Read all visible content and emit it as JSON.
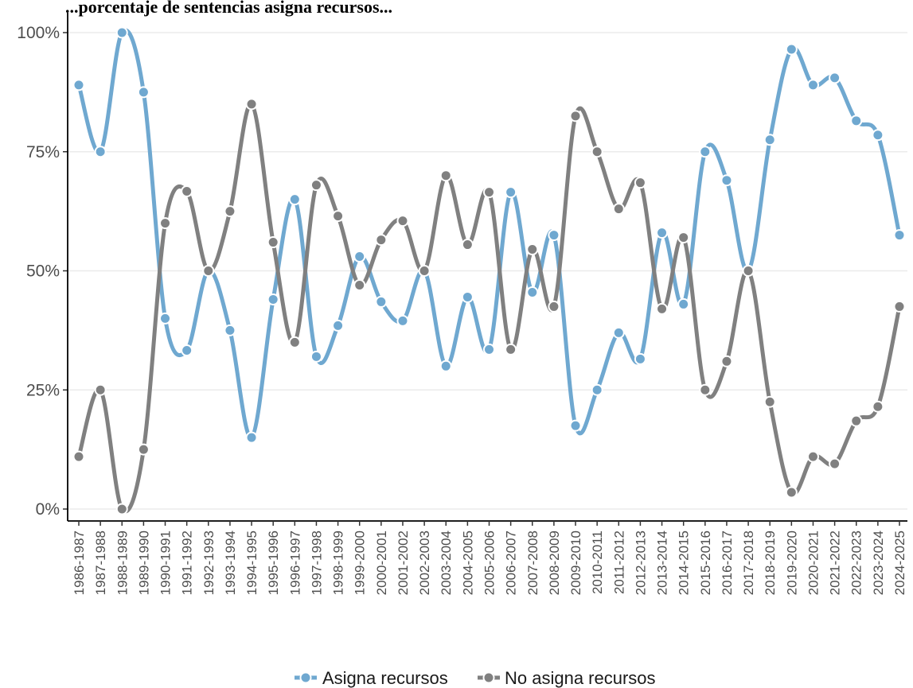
{
  "chart_data": {
    "type": "line",
    "title": "...porcentaje de sentencias asigna recursos...",
    "ylim": [
      0,
      100
    ],
    "y_ticks": [
      "0%",
      "25%",
      "50%",
      "75%",
      "100%"
    ],
    "grid": "horizontal major",
    "legend_position": "bottom",
    "x": [
      "1986-1987",
      "1987-1988",
      "1988-1989",
      "1989-1990",
      "1990-1991",
      "1991-1992",
      "1992-1993",
      "1993-1994",
      "1994-1995",
      "1995-1996",
      "1996-1997",
      "1997-1998",
      "1998-1999",
      "1999-2000",
      "2000-2001",
      "2001-2002",
      "2002-2003",
      "2003-2004",
      "2004-2005",
      "2005-2006",
      "2006-2007",
      "2007-2008",
      "2008-2009",
      "2009-2010",
      "2010-2011",
      "2011-2012",
      "2012-2013",
      "2013-2014",
      "2014-2015",
      "2015-2016",
      "2016-2017",
      "2017-2018",
      "2018-2019",
      "2019-2020",
      "2020-2021",
      "2021-2022",
      "2022-2023",
      "2023-2024",
      "2024-2025"
    ],
    "series": [
      {
        "name": "Asigna recursos",
        "color": "#6fa8d0",
        "values": [
          89,
          75,
          100,
          87.5,
          40,
          33.3,
          50,
          37.5,
          15,
          44,
          65,
          32,
          38.5,
          53,
          43.5,
          39.5,
          50,
          30,
          44.5,
          33.5,
          66.5,
          45.5,
          57.5,
          17.5,
          25,
          37,
          31.5,
          58,
          43,
          75,
          69,
          50,
          77.5,
          96.5,
          89,
          90.5,
          81.5,
          78.5,
          57.5
        ]
      },
      {
        "name": "No asigna recursos",
        "color": "#808080",
        "values": [
          11,
          25,
          0,
          12.5,
          60,
          66.7,
          50,
          62.5,
          85,
          56,
          35,
          68,
          61.5,
          47,
          56.5,
          60.5,
          50,
          70,
          55.5,
          66.5,
          33.5,
          54.5,
          42.5,
          82.5,
          75,
          63,
          68.5,
          42,
          57,
          25,
          31,
          50,
          22.5,
          3.5,
          11,
          9.5,
          18.5,
          21.5,
          42.5
        ]
      }
    ]
  }
}
